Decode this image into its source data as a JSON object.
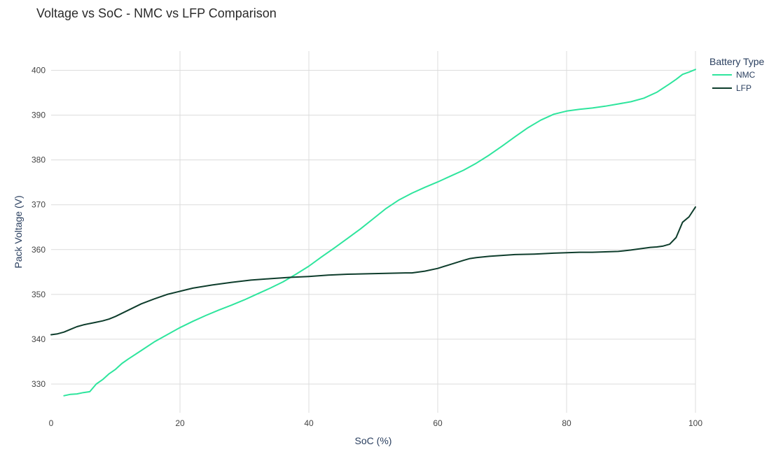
{
  "chart_data": {
    "type": "line",
    "title": "Voltage vs SoC - NMC vs LFP Comparison",
    "xlabel": "SoC (%)",
    "ylabel": "Pack Voltage (V)",
    "xlim": [
      0,
      100
    ],
    "ylim": [
      323.6,
      404.3
    ],
    "xticks": [
      0,
      20,
      40,
      60,
      80,
      100
    ],
    "yticks": [
      330,
      340,
      350,
      360,
      370,
      380,
      390,
      400
    ],
    "grid": true,
    "legend": {
      "title": "Battery Type",
      "position": "top-right"
    },
    "series": [
      {
        "name": "NMC",
        "color": "#2ee59d",
        "x": [
          2,
          3,
          4,
          5,
          6,
          7,
          8,
          9,
          10,
          11,
          12,
          14,
          16,
          18,
          20,
          22,
          24,
          26,
          28,
          30,
          32,
          34,
          36,
          38,
          40,
          42,
          44,
          46,
          48,
          50,
          52,
          54,
          56,
          58,
          60,
          62,
          64,
          66,
          68,
          70,
          72,
          74,
          76,
          78,
          80,
          82,
          84,
          86,
          88,
          90,
          92,
          94,
          96,
          97,
          98,
          99,
          100
        ],
        "y": [
          327.4,
          327.7,
          327.8,
          328.1,
          328.3,
          330.0,
          331.0,
          332.3,
          333.3,
          334.6,
          335.6,
          337.5,
          339.4,
          341.0,
          342.6,
          344.0,
          345.3,
          346.5,
          347.6,
          348.8,
          350.1,
          351.4,
          352.8,
          354.5,
          356.3,
          358.4,
          360.4,
          362.5,
          364.6,
          366.9,
          369.2,
          371.1,
          372.6,
          373.9,
          375.1,
          376.4,
          377.7,
          379.3,
          381.1,
          383.1,
          385.2,
          387.2,
          388.9,
          390.2,
          390.9,
          391.3,
          391.6,
          392.0,
          392.5,
          393.0,
          393.8,
          395.1,
          397.0,
          398.0,
          399.1,
          399.6,
          400.2
        ]
      },
      {
        "name": "LFP",
        "color": "#0e3d2c",
        "x": [
          0,
          1,
          2,
          3,
          4,
          5,
          6,
          7,
          8,
          9,
          10,
          12,
          14,
          16,
          18,
          20,
          22,
          25,
          28,
          31,
          34,
          37,
          40,
          43,
          46,
          49,
          52,
          55,
          56,
          58,
          60,
          62,
          64,
          65,
          66,
          68,
          70,
          72,
          75,
          78,
          80,
          82,
          84,
          86,
          88,
          90,
          92,
          93,
          94,
          95,
          96,
          97,
          98,
          99,
          100
        ],
        "y": [
          341.0,
          341.2,
          341.6,
          342.2,
          342.8,
          343.2,
          343.5,
          343.8,
          344.1,
          344.5,
          345.1,
          346.5,
          347.9,
          349.0,
          350.0,
          350.7,
          351.4,
          352.1,
          352.7,
          353.2,
          353.5,
          353.8,
          354.0,
          354.3,
          354.5,
          354.6,
          354.7,
          354.8,
          354.8,
          355.2,
          355.8,
          356.7,
          357.6,
          358.0,
          358.2,
          358.5,
          358.7,
          358.9,
          359.0,
          359.2,
          359.3,
          359.4,
          359.4,
          359.5,
          359.6,
          359.9,
          360.3,
          360.5,
          360.6,
          360.8,
          361.2,
          362.7,
          366.1,
          367.3,
          369.5
        ]
      }
    ]
  }
}
